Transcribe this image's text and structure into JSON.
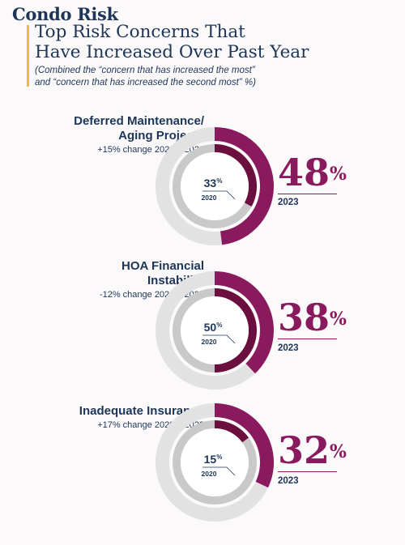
{
  "header": {
    "brand": "Condo Risk",
    "title_line1": "Top Risk Concerns That",
    "title_line2": "Have Increased Over Past Year",
    "subtitle_line1": "(Combined the “concern that has increased the most”",
    "subtitle_line2": "and “concern that has increased the second most” %)"
  },
  "colors": {
    "outer_2023": "#8a1a5e",
    "inner_2020": "#6b0f3e",
    "track_outer": "#e2e2e2",
    "track_inner": "#c9c9c9",
    "text_dark": "#1d3557",
    "accent_bar": "#e9b949"
  },
  "chart_data": [
    {
      "type": "pie",
      "name_line1": "Deferred Maintenance/",
      "name_line2": "Aging Projects",
      "change": "+15% change 2020 – 2023",
      "value_2023": 48,
      "value_2020": 33,
      "label_2023": "48",
      "label_2020": "33",
      "year_2023": "2023",
      "year_2020": "2020",
      "unit": "%"
    },
    {
      "type": "pie",
      "name_line1": "HOA Financial",
      "name_line2": "Instability",
      "change": "-12% change 2020 – 2023",
      "value_2023": 38,
      "value_2020": 50,
      "label_2023": "38",
      "label_2020": "50",
      "year_2023": "2023",
      "year_2020": "2020",
      "unit": "%"
    },
    {
      "type": "pie",
      "name_line1": "Inadequate Insurance",
      "change": "+17% change 2020 – 2023",
      "value_2023": 32,
      "value_2020": 15,
      "label_2023": "32",
      "label_2020": "15",
      "year_2023": "2023",
      "year_2020": "2020",
      "unit": "%"
    }
  ]
}
